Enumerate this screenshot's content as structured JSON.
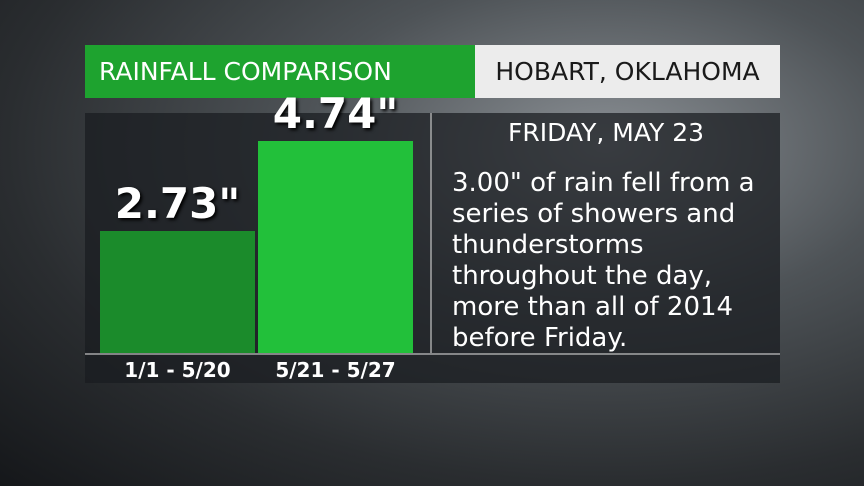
{
  "chart_data": {
    "type": "bar",
    "title": "RAINFALL COMPARISON",
    "subtitle": "HOBART, OKLAHOMA",
    "categories": [
      "1/1 - 5/20",
      "5/21 - 5/27"
    ],
    "values": [
      2.73,
      4.74
    ],
    "value_labels": [
      "2.73\"",
      "4.74\""
    ],
    "colors": [
      "#1b8b2b",
      "#22c03a"
    ],
    "annotation_title": "FRIDAY, MAY 23",
    "annotation": "3.00\" of rain fell from a series of showers and thunderstorms throughout the day, more than all of 2014 before Friday."
  }
}
